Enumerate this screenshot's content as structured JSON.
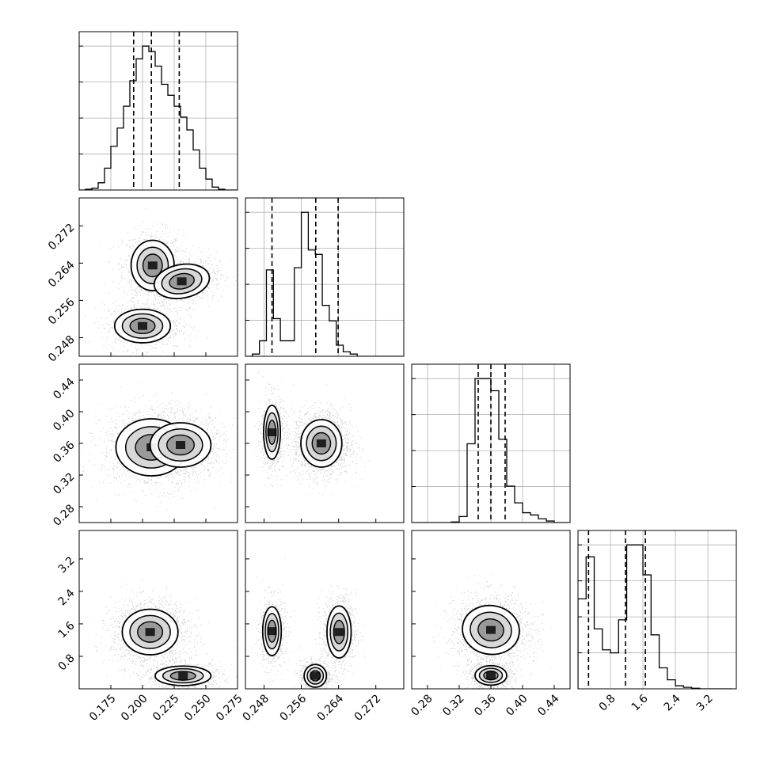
{
  "chart_data": {
    "type": "corner",
    "parameters": 4,
    "colors": {
      "hist": "#000000",
      "grid": "#b0b0b0",
      "points": "#555555",
      "contour": "#000000"
    },
    "quantiles": [
      0.16,
      0.5,
      0.84
    ],
    "axes": [
      {
        "range": [
          0.15,
          0.275
        ],
        "ticks": [
          0.175,
          0.2,
          0.225,
          0.25,
          0.275
        ],
        "tick_labels": [
          "0.175",
          "0.200",
          "0.225",
          "0.250",
          "0.275"
        ]
      },
      {
        "range": [
          0.244,
          0.278
        ],
        "ticks": [
          0.248,
          0.256,
          0.264,
          0.272
        ],
        "tick_labels": [
          "0.248",
          "0.256",
          "0.264",
          "0.272"
        ]
      },
      {
        "range": [
          0.26,
          0.46
        ],
        "ticks": [
          0.28,
          0.32,
          0.36,
          0.4,
          0.44
        ],
        "tick_labels": [
          "0.28",
          "0.32",
          "0.36",
          "0.40",
          "0.44"
        ]
      },
      {
        "range": [
          0.0,
          3.9
        ],
        "ticks": [
          0.8,
          1.6,
          2.4,
          3.2
        ],
        "tick_labels": [
          "0.8",
          "1.6",
          "2.4",
          "3.2"
        ]
      }
    ],
    "histograms": [
      {
        "param": 0,
        "bin_edges": [
          0.15,
          0.155,
          0.16,
          0.165,
          0.17,
          0.175,
          0.18,
          0.185,
          0.19,
          0.195,
          0.2,
          0.205,
          0.21,
          0.215,
          0.22,
          0.225,
          0.23,
          0.235,
          0.24,
          0.245,
          0.25,
          0.255,
          0.26,
          0.265,
          0.27,
          0.275
        ],
        "counts": [
          0,
          2,
          5,
          20,
          60,
          120,
          170,
          230,
          300,
          360,
          395,
          380,
          340,
          290,
          260,
          230,
          200,
          165,
          110,
          60,
          30,
          8,
          2,
          0,
          0
        ],
        "quantile_values": [
          0.193,
          0.207,
          0.229
        ]
      },
      {
        "param": 1,
        "bin_edges": [
          0.244,
          0.2455,
          0.247,
          0.2485,
          0.25,
          0.2515,
          0.253,
          0.2545,
          0.256,
          0.2575,
          0.259,
          0.2605,
          0.262,
          0.2635,
          0.265,
          0.2665,
          0.268,
          0.2695,
          0.271,
          0.2725,
          0.274,
          0.2755,
          0.277,
          0.2785
        ],
        "counts": [
          0,
          10,
          70,
          390,
          170,
          70,
          70,
          400,
          650,
          480,
          460,
          230,
          160,
          50,
          20,
          10,
          0,
          0,
          0,
          0,
          0,
          0,
          0
        ],
        "quantile_values": [
          0.2497,
          0.2591,
          0.2639
        ]
      },
      {
        "param": 2,
        "bin_edges": [
          0.26,
          0.27,
          0.28,
          0.29,
          0.3,
          0.31,
          0.32,
          0.33,
          0.34,
          0.35,
          0.36,
          0.37,
          0.38,
          0.39,
          0.4,
          0.41,
          0.42,
          0.43,
          0.44,
          0.45,
          0.46
        ],
        "counts": [
          0,
          0,
          0,
          0,
          0,
          4,
          40,
          520,
          950,
          950,
          870,
          550,
          240,
          130,
          65,
          50,
          25,
          10,
          0,
          0
        ],
        "quantile_values": [
          0.344,
          0.36,
          0.378
        ]
      },
      {
        "param": 3,
        "bin_edges": [
          0.0,
          0.2,
          0.4,
          0.6,
          0.8,
          1.0,
          1.2,
          1.4,
          1.6,
          1.8,
          2.0,
          2.2,
          2.4,
          2.6,
          2.8,
          3.0,
          3.2,
          3.4,
          3.6,
          3.8
        ],
        "counts": [
          300,
          440,
          200,
          130,
          120,
          230,
          480,
          480,
          380,
          180,
          70,
          30,
          10,
          5,
          2,
          0,
          0,
          0,
          0
        ],
        "quantile_values": [
          0.26,
          1.17,
          1.66
        ]
      }
    ],
    "joint": [
      {
        "x": 0,
        "y": 1,
        "modes": [
          {
            "cx": 0.208,
            "cy": 0.2635,
            "sx": 0.0085,
            "sy": 0.0027,
            "w": 0.36
          },
          {
            "cx": 0.231,
            "cy": 0.2601,
            "sx": 0.011,
            "sy": 0.0018,
            "w": 0.34,
            "rot": 0.18
          },
          {
            "cx": 0.2,
            "cy": 0.2505,
            "sx": 0.011,
            "sy": 0.0018,
            "w": 0.3
          }
        ]
      },
      {
        "x": 0,
        "y": 2,
        "modes": [
          {
            "cx": 0.207,
            "cy": 0.355,
            "sx": 0.014,
            "sy": 0.018,
            "w": 0.55
          },
          {
            "cx": 0.23,
            "cy": 0.358,
            "sx": 0.012,
            "sy": 0.014,
            "w": 0.45
          }
        ]
      },
      {
        "x": 0,
        "y": 3,
        "modes": [
          {
            "cx": 0.206,
            "cy": 1.4,
            "sx": 0.011,
            "sy": 0.28,
            "w": 0.68
          },
          {
            "cx": 0.232,
            "cy": 0.32,
            "sx": 0.011,
            "sy": 0.12,
            "w": 0.32
          }
        ]
      },
      {
        "x": 1,
        "y": 2,
        "modes": [
          {
            "cx": 0.2497,
            "cy": 0.374,
            "sx": 0.0009,
            "sy": 0.017,
            "w": 0.3
          },
          {
            "cx": 0.2603,
            "cy": 0.36,
            "sx": 0.0022,
            "sy": 0.015,
            "w": 0.7
          }
        ]
      },
      {
        "x": 1,
        "y": 3,
        "modes": [
          {
            "cx": 0.2497,
            "cy": 1.42,
            "sx": 0.001,
            "sy": 0.3,
            "w": 0.3
          },
          {
            "cx": 0.2641,
            "cy": 1.4,
            "sx": 0.0013,
            "sy": 0.32,
            "w": 0.36
          },
          {
            "cx": 0.259,
            "cy": 0.32,
            "sx": 0.0012,
            "sy": 0.14,
            "w": 0.34
          }
        ]
      },
      {
        "x": 2,
        "y": 3,
        "modes": [
          {
            "cx": 0.36,
            "cy": 1.45,
            "sx": 0.018,
            "sy": 0.3,
            "w": 0.66,
            "rot": -0.15
          },
          {
            "cx": 0.36,
            "cy": 0.33,
            "sx": 0.01,
            "sy": 0.12,
            "w": 0.34
          }
        ]
      }
    ]
  }
}
